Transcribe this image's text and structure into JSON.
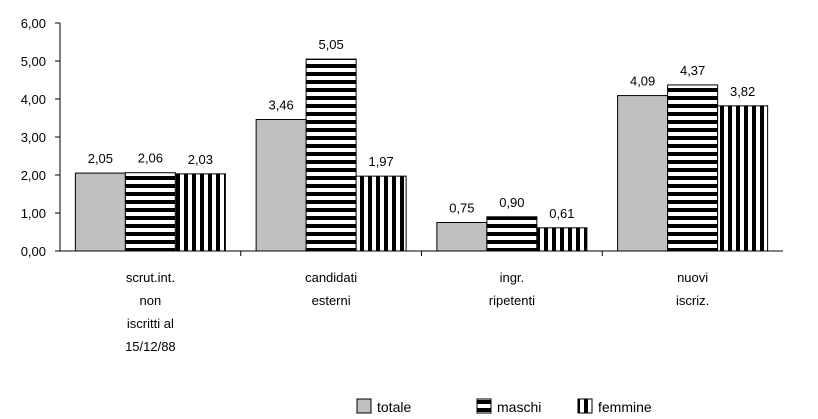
{
  "chart_data": {
    "type": "bar",
    "categories": [
      [
        "scrut.int.",
        "non",
        "iscritti al",
        "15/12/88"
      ],
      [
        "candidati",
        "esterni"
      ],
      [
        "ingr.",
        "ripetenti"
      ],
      [
        "nuovi",
        "iscriz."
      ]
    ],
    "series": [
      {
        "name": "totale",
        "values": [
          2.05,
          3.46,
          0.75,
          4.09
        ],
        "labels": [
          "2,05",
          "3,46",
          "0,75",
          "4,09"
        ],
        "pattern": "solid",
        "color": "#c0c0c0"
      },
      {
        "name": "maschi",
        "values": [
          2.06,
          5.05,
          0.9,
          4.37
        ],
        "labels": [
          "2,06",
          "5,05",
          "0,90",
          "4,37"
        ],
        "pattern": "horizontal-stripes",
        "color": "#000000"
      },
      {
        "name": "femmine",
        "values": [
          2.03,
          1.97,
          0.61,
          3.82
        ],
        "labels": [
          "2,03",
          "1,97",
          "0,61",
          "3,82"
        ],
        "pattern": "vertical-stripes",
        "color": "#000000"
      }
    ],
    "yticks": [
      0,
      1,
      2,
      3,
      4,
      5,
      6
    ],
    "ytick_labels": [
      "0,00",
      "1,00",
      "2,00",
      "3,00",
      "4,00",
      "5,00",
      "6,00"
    ],
    "ylim": [
      0,
      6
    ],
    "title": "",
    "xlabel": "",
    "ylabel": "",
    "grid": false,
    "legend": "bottom"
  }
}
